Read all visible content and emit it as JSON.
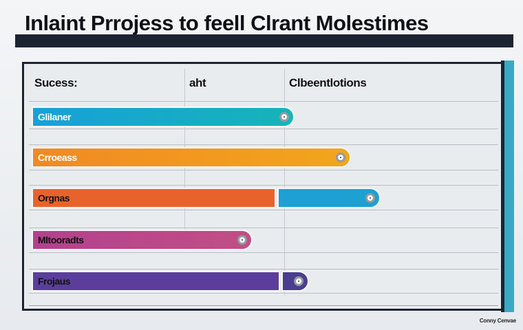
{
  "title": "Inlaint Prrojess  to feell Clrant Molestimes",
  "columns": [
    "Sucess:",
    "aht",
    "Clbeentlotions"
  ],
  "rows": [
    {
      "label": "Glilaner",
      "color": "#18a0d8",
      "color2": "#16b4b9",
      "progress": 0.56,
      "extra": null
    },
    {
      "label": "Crroeass",
      "color": "#f08a23",
      "color2": "#f3a51c",
      "progress": 0.68,
      "extra": null
    },
    {
      "label": "Orgnas",
      "color": "#e8632b",
      "color2": "#e8632b",
      "progress": 0.52,
      "extra": {
        "color": "#1ea0d3",
        "progress": 0.22
      }
    },
    {
      "label": "Mltooradts",
      "color": "#b3418e",
      "color2": "#c14f85",
      "progress": 0.47,
      "extra": null
    },
    {
      "label": "Frojaus",
      "color": "#5b3e9c",
      "color2": "#5b3e9c",
      "progress": 0.53,
      "extra": {
        "color": "#4b3d8f",
        "progress": 0.05
      }
    }
  ],
  "footer": "Conny Cenvae"
}
